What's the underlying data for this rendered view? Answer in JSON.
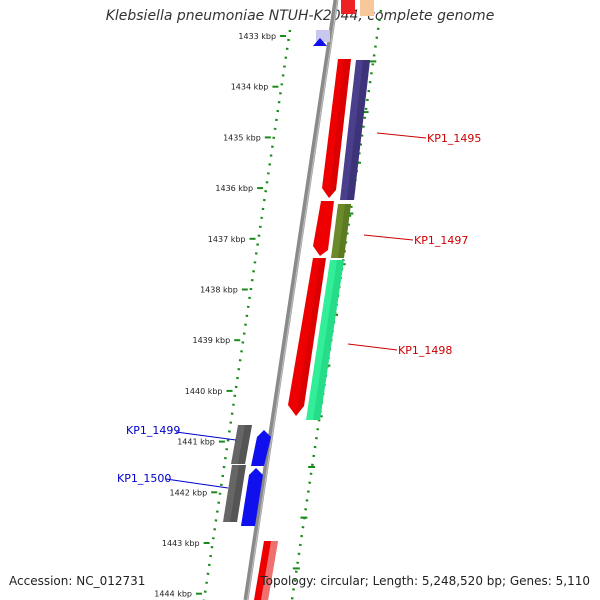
{
  "title": "Klebsiella pneumoniae NTUH-K2044, complete genome",
  "accession": "Accession: NC_012731",
  "summary": "Topology: circular; Length: 5,248,520 bp; Genes: 5,110",
  "ticks": [
    {
      "label": "1433 kbp",
      "kbp": 1433
    },
    {
      "label": "1434 kbp",
      "kbp": 1434
    },
    {
      "label": "1435 kbp",
      "kbp": 1435
    },
    {
      "label": "1436 kbp",
      "kbp": 1436
    },
    {
      "label": "1437 kbp",
      "kbp": 1437
    },
    {
      "label": "1438 kbp",
      "kbp": 1438
    },
    {
      "label": "1439 kbp",
      "kbp": 1439
    },
    {
      "label": "1440 kbp",
      "kbp": 1440
    },
    {
      "label": "1441 kbp",
      "kbp": 1441
    },
    {
      "label": "1442 kbp",
      "kbp": 1442
    },
    {
      "label": "1443 kbp",
      "kbp": 1443
    },
    {
      "label": "1444 kbp",
      "kbp": 1444
    }
  ],
  "gene_labels": [
    {
      "text": "KP1_1495",
      "color": "#cc0000"
    },
    {
      "text": "KP1_1497",
      "color": "#cc0000"
    },
    {
      "text": "KP1_1498",
      "color": "#cc0000"
    },
    {
      "text": "KP1_1499",
      "color": "#0000cc"
    },
    {
      "text": "KP1_1500",
      "color": "#0000cc"
    }
  ],
  "colors": {
    "backbone": "#8a8a8a",
    "tick_dots": "#1a8a1a",
    "gene_red": "#ee0000",
    "gene_purple": "#4a3f8c",
    "gene_olive": "#6b8a2a",
    "gene_green": "#33ee99",
    "gene_gray": "#666666",
    "gene_blue": "#1010ee"
  }
}
